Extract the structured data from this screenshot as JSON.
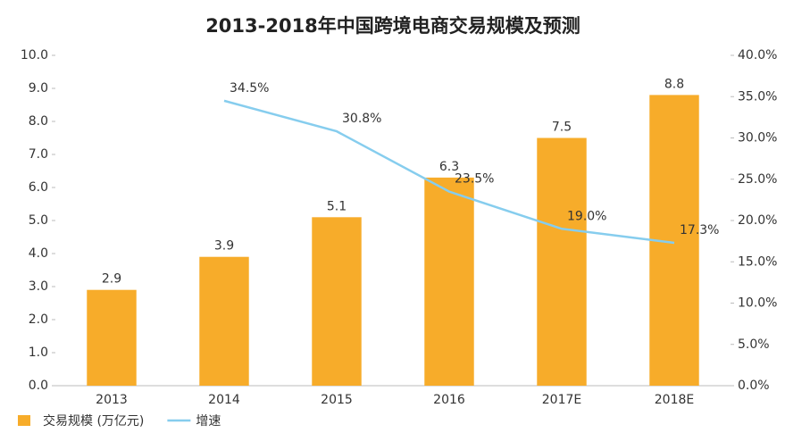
{
  "chart_data": {
    "type": "bar-line",
    "title": "2013-2018年中国跨境电商交易规模及预测",
    "categories": [
      "2013",
      "2014",
      "2015",
      "2016",
      "2017E",
      "2018E"
    ],
    "series": [
      {
        "name": "交易规模 (万亿元)",
        "color": "#f7ac2a",
        "type": "bar",
        "values": [
          2.9,
          3.9,
          5.1,
          6.3,
          7.5,
          8.8
        ]
      },
      {
        "name": "增速",
        "color": "#86cdee",
        "type": "line",
        "axis": "y2",
        "values": [
          null,
          34.5,
          30.8,
          23.5,
          19.0,
          17.3
        ],
        "value_labels": [
          null,
          "34.5%",
          "30.8%",
          "23.5%",
          "19.0%",
          "17.3%"
        ]
      }
    ],
    "ylim": [
      0,
      10
    ],
    "yticks": [
      {
        "value": 0,
        "label": "0.0"
      },
      {
        "value": 1,
        "label": "1.0"
      },
      {
        "value": 2,
        "label": "2.0"
      },
      {
        "value": 3,
        "label": "3.0"
      },
      {
        "value": 4,
        "label": "4.0"
      },
      {
        "value": 5,
        "label": "5.0"
      },
      {
        "value": 6,
        "label": "6.0"
      },
      {
        "value": 7,
        "label": "7.0"
      },
      {
        "value": 8,
        "label": "8.0"
      },
      {
        "value": 9,
        "label": "9.0"
      },
      {
        "value": 10,
        "label": "10.0"
      }
    ],
    "y2lim": [
      0,
      40
    ],
    "y2ticks": [
      {
        "value": 0,
        "label": "0.0%"
      },
      {
        "value": 5,
        "label": "5.0%"
      },
      {
        "value": 10,
        "label": "10.0%"
      },
      {
        "value": 15,
        "label": "15.0%"
      },
      {
        "value": 20,
        "label": "20.0%"
      },
      {
        "value": 25,
        "label": "25.0%"
      },
      {
        "value": 30,
        "label": "30.0%"
      },
      {
        "value": 35,
        "label": "35.0%"
      },
      {
        "value": 40,
        "label": "40.0%"
      }
    ],
    "grid": false
  }
}
